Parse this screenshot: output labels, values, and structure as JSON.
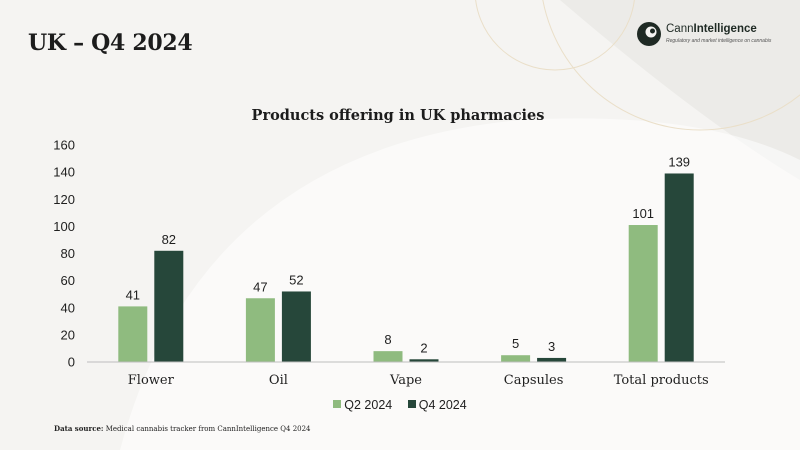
{
  "slide": {
    "title": "UK – Q4 2024"
  },
  "logo": {
    "name_prefix": "Cann",
    "name_suffix": "Intelligence",
    "tagline": "Regulatory and market intelligence on cannabis"
  },
  "source": {
    "label": "Data source:",
    "text": "Medical cannabis tracker from CannIntelligence Q4 2024"
  },
  "colors": {
    "q2": "#8fbb7f",
    "q4": "#26473a",
    "background": "#f5f4f2"
  },
  "chart_data": {
    "type": "bar",
    "title": "Products offering in UK pharmacies",
    "categories": [
      "Flower",
      "Oil",
      "Vape",
      "Capsules",
      "Total products"
    ],
    "series": [
      {
        "name": "Q2 2024",
        "values": [
          41,
          47,
          8,
          5,
          101
        ],
        "color": "#8fbb7f"
      },
      {
        "name": "Q4 2024",
        "values": [
          82,
          52,
          2,
          3,
          139
        ],
        "color": "#26473a"
      }
    ],
    "ylim": [
      0,
      160
    ],
    "yticks": [
      0,
      20,
      40,
      60,
      80,
      100,
      120,
      140,
      160
    ],
    "grid": false,
    "legend": "bottom",
    "xlabel": "",
    "ylabel": ""
  }
}
